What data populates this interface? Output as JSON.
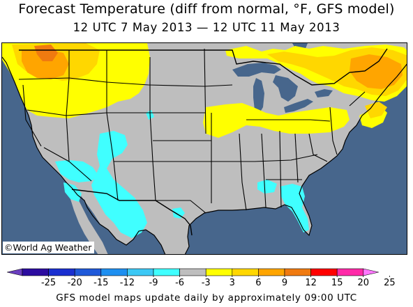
{
  "title": "Forecast Temperature (diff from normal, °F, GFS model)",
  "subtitle": "12 UTC 7 May 2013 — 12 UTC 11 May 2013",
  "credit": "©World Ag Weather",
  "footer": "GFS model maps update daily by approximately 09:00 UTC",
  "legend": {
    "labels": [
      "-25",
      "-20",
      "-15",
      "-12",
      "-9",
      "-6",
      "-3",
      "3",
      "6",
      "9",
      "12",
      "15",
      "20",
      "25"
    ],
    "colors": [
      "#6a3fbf",
      "#2c0ca0",
      "#1a2fd0",
      "#1f59d9",
      "#1e8ff0",
      "#3cc8f5",
      "#40ffff",
      "#bebebe",
      "#ffff00",
      "#ffd700",
      "#ffa500",
      "#f07a10",
      "#ff0000",
      "#ff29a8",
      "#ff77ff"
    ]
  },
  "map": {
    "land_color": "#bebebe",
    "water_color": "#47668c",
    "anomaly_regions": [
      {
        "region": "Pacific Northwest",
        "level": "6 to 12 above"
      },
      {
        "region": "Northern Plains",
        "level": "3 to 6 above"
      },
      {
        "region": "Great Lakes / Midwest",
        "level": "3 to 6 above"
      },
      {
        "region": "Ontario / Quebec / New England",
        "level": "3 to 9 above"
      },
      {
        "region": "Southwest / Mexico border",
        "level": "-3 to -6 below"
      },
      {
        "region": "Florida / Georgia",
        "level": "-3 to -6 below"
      }
    ]
  }
}
